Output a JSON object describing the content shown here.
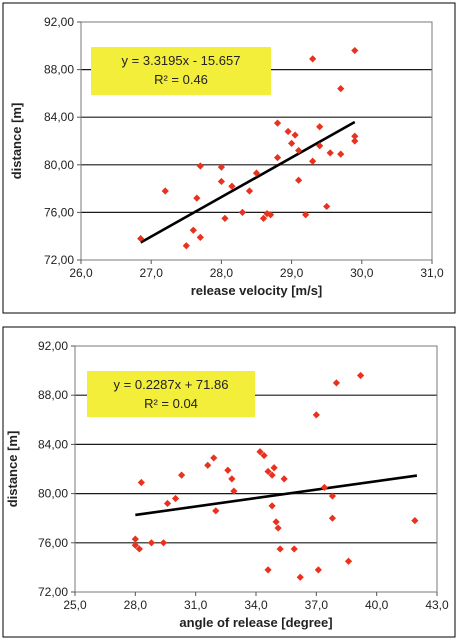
{
  "chart_data": [
    {
      "type": "scatter",
      "xlabel": "release velocity [m/s]",
      "ylabel": "distance [m]",
      "xlim": [
        26.0,
        31.0
      ],
      "ylim": [
        72.0,
        92.0
      ],
      "x_ticks": [
        "26,0",
        "27,0",
        "28,0",
        "29,0",
        "30,0",
        "31,0"
      ],
      "x_tick_values": [
        26,
        27,
        28,
        29,
        30,
        31
      ],
      "y_ticks": [
        "72,00",
        "76,00",
        "80,00",
        "84,00",
        "88,00",
        "92,00"
      ],
      "y_tick_values": [
        72,
        76,
        80,
        84,
        88,
        92
      ],
      "grid": "horizontal",
      "marker_color": "#e8321e",
      "trend_color": "#000000",
      "annotation_color": "#f2ee3a",
      "equation": "y = 3.3195x - 15.657",
      "r_squared": "R² = 0.46",
      "trendline": {
        "slope": 3.3195,
        "intercept": -15.657,
        "x_range": [
          26.85,
          29.9
        ]
      },
      "points": [
        [
          26.85,
          73.8
        ],
        [
          27.2,
          77.8
        ],
        [
          27.5,
          73.2
        ],
        [
          27.6,
          74.5
        ],
        [
          27.65,
          77.2
        ],
        [
          27.7,
          79.9
        ],
        [
          27.7,
          73.9
        ],
        [
          28.0,
          79.8
        ],
        [
          28.0,
          78.6
        ],
        [
          28.05,
          75.5
        ],
        [
          28.15,
          78.2
        ],
        [
          28.3,
          76.0
        ],
        [
          28.4,
          77.8
        ],
        [
          28.5,
          79.3
        ],
        [
          28.6,
          75.5
        ],
        [
          28.65,
          75.9
        ],
        [
          28.7,
          75.8
        ],
        [
          28.8,
          80.6
        ],
        [
          28.8,
          83.5
        ],
        [
          28.95,
          82.8
        ],
        [
          29.0,
          81.8
        ],
        [
          29.05,
          82.5
        ],
        [
          29.1,
          81.2
        ],
        [
          29.1,
          78.7
        ],
        [
          29.2,
          75.8
        ],
        [
          29.3,
          88.9
        ],
        [
          29.3,
          80.3
        ],
        [
          29.4,
          81.6
        ],
        [
          29.4,
          83.2
        ],
        [
          29.5,
          76.5
        ],
        [
          29.55,
          81.0
        ],
        [
          29.7,
          86.4
        ],
        [
          29.7,
          80.9
        ],
        [
          29.9,
          89.6
        ],
        [
          29.9,
          82.4
        ],
        [
          29.9,
          82.0
        ]
      ]
    },
    {
      "type": "scatter",
      "xlabel": "angle of release [degree]",
      "ylabel": "distance [m]",
      "xlim": [
        25.0,
        43.0
      ],
      "ylim": [
        72.0,
        92.0
      ],
      "x_ticks": [
        "25,0",
        "28,0",
        "31,0",
        "34,0",
        "37,0",
        "40,0",
        "43,0"
      ],
      "x_tick_values": [
        25,
        28,
        31,
        34,
        37,
        40,
        43
      ],
      "y_ticks": [
        "72,00",
        "76,00",
        "80,00",
        "84,00",
        "88,00",
        "92,00"
      ],
      "y_tick_values": [
        72,
        76,
        80,
        84,
        88,
        92
      ],
      "grid": "horizontal",
      "marker_color": "#e8321e",
      "trend_color": "#000000",
      "annotation_color": "#f2ee3a",
      "equation": "y = 0.2287x + 71.86",
      "r_squared": "R² = 0.04",
      "trendline": {
        "slope": 0.2287,
        "intercept": 71.86,
        "x_range": [
          28.0,
          42.0
        ]
      },
      "points": [
        [
          28.0,
          75.8
        ],
        [
          28.0,
          76.3
        ],
        [
          28.2,
          75.5
        ],
        [
          28.3,
          80.9
        ],
        [
          28.8,
          76.0
        ],
        [
          29.4,
          76.0
        ],
        [
          29.6,
          79.2
        ],
        [
          30.0,
          79.6
        ],
        [
          30.3,
          81.5
        ],
        [
          31.6,
          82.3
        ],
        [
          31.9,
          82.9
        ],
        [
          32.0,
          78.6
        ],
        [
          32.6,
          81.9
        ],
        [
          32.8,
          81.2
        ],
        [
          32.9,
          80.2
        ],
        [
          34.2,
          83.4
        ],
        [
          34.4,
          83.1
        ],
        [
          34.6,
          73.8
        ],
        [
          34.6,
          81.8
        ],
        [
          34.8,
          79.0
        ],
        [
          34.8,
          81.5
        ],
        [
          34.9,
          82.1
        ],
        [
          35.0,
          77.7
        ],
        [
          35.1,
          77.2
        ],
        [
          35.2,
          75.5
        ],
        [
          35.4,
          81.2
        ],
        [
          35.9,
          75.5
        ],
        [
          36.2,
          73.2
        ],
        [
          37.0,
          86.4
        ],
        [
          37.1,
          73.8
        ],
        [
          37.4,
          80.5
        ],
        [
          37.8,
          78.0
        ],
        [
          37.8,
          79.8
        ],
        [
          38.0,
          89.0
        ],
        [
          38.6,
          74.5
        ],
        [
          39.2,
          89.6
        ],
        [
          41.9,
          77.8
        ]
      ]
    }
  ]
}
